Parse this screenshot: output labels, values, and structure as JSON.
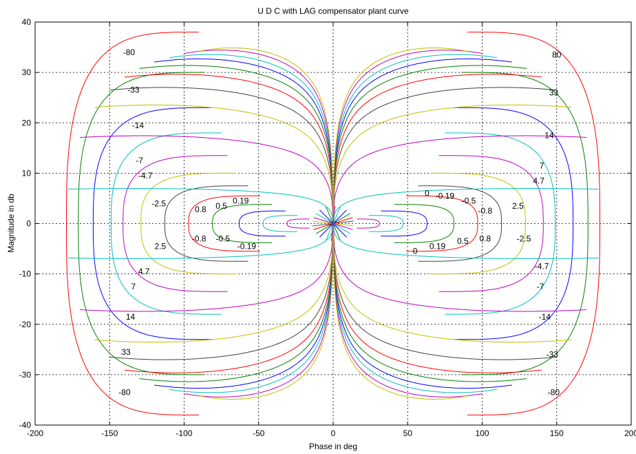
{
  "chart_data": {
    "type": "line",
    "title": "U D C with LAG compensator plant curve",
    "xlabel": "Phase in deg",
    "ylabel": "Magnitude in db",
    "xlim": [
      -200,
      200
    ],
    "ylim": [
      -40,
      40
    ],
    "xticks": [
      "-200",
      "-150",
      "-100",
      "-50",
      "0",
      "50",
      "100",
      "150",
      "200"
    ],
    "yticks": [
      "40",
      "30",
      "20",
      "10",
      "0",
      "-10",
      "-20",
      "-30",
      "-40"
    ],
    "grid": true,
    "colors": [
      "#ff0000",
      "#008000",
      "#0000ff",
      "#00bfbf",
      "#bf00bf",
      "#bfbf00",
      "#404040"
    ],
    "contours": [
      {
        "label": "80",
        "value": 80,
        "color": "#ff0000"
      },
      {
        "label": "33",
        "value": 33,
        "color": "#404040"
      },
      {
        "label": "14",
        "value": 14,
        "color": "#0000ff"
      },
      {
        "label": "7",
        "value": 7,
        "color": "#008000"
      },
      {
        "label": "4.7",
        "value": 4.7,
        "color": "#ff0000"
      },
      {
        "label": "2.5",
        "value": 2.5,
        "color": "#bfbf00"
      },
      {
        "label": "0.8",
        "value": 0.8,
        "color": "#00bfbf"
      },
      {
        "label": "0.5",
        "value": 0.5,
        "color": "#0000ff"
      },
      {
        "label": "0.19",
        "value": 0.19,
        "color": "#bf00bf"
      },
      {
        "label": "0",
        "value": 0,
        "color": "#008000"
      }
    ],
    "curve_labels": [
      {
        "text": "-80",
        "x": -137,
        "y": 34
      },
      {
        "text": "-33",
        "x": -134,
        "y": 26.5
      },
      {
        "text": "-14",
        "x": -131,
        "y": 19.5
      },
      {
        "text": "-7",
        "x": -130,
        "y": 12.5
      },
      {
        "text": "-4.7",
        "x": -126,
        "y": 9.5
      },
      {
        "text": "-2.5",
        "x": -117,
        "y": 4
      },
      {
        "text": "0.8",
        "x": -89,
        "y": 2.8
      },
      {
        "text": "0.5",
        "x": -75,
        "y": 3.5
      },
      {
        "text": "0.19",
        "x": -62,
        "y": 4.5
      },
      {
        "text": "2.5",
        "x": -116,
        "y": -4.5
      },
      {
        "text": "-0.8",
        "x": -90,
        "y": -3
      },
      {
        "text": "-0.5",
        "x": -74,
        "y": -3
      },
      {
        "text": "-0.19",
        "x": -58,
        "y": -4.5
      },
      {
        "text": "4.7",
        "x": -127,
        "y": -9.5
      },
      {
        "text": "7",
        "x": -134,
        "y": -12.5
      },
      {
        "text": "14",
        "x": -136,
        "y": -18.5
      },
      {
        "text": "33",
        "x": -139,
        "y": -25.5
      },
      {
        "text": "-80",
        "x": -140,
        "y": -33.5
      },
      {
        "text": "80",
        "x": 150,
        "y": 33.5
      },
      {
        "text": "33",
        "x": 148,
        "y": 26
      },
      {
        "text": "14",
        "x": 145,
        "y": 17.5
      },
      {
        "text": "7",
        "x": 140,
        "y": 11.5
      },
      {
        "text": "4.7",
        "x": 138,
        "y": 8.5
      },
      {
        "text": "2.5",
        "x": 124,
        "y": 3.5
      },
      {
        "text": "0",
        "x": 63,
        "y": 6
      },
      {
        "text": "-0.19",
        "x": 75,
        "y": 5.5
      },
      {
        "text": "-0.5",
        "x": 91,
        "y": 4.5
      },
      {
        "text": "-0.8",
        "x": 102,
        "y": 2.5
      },
      {
        "text": "0",
        "x": 55,
        "y": -5.5
      },
      {
        "text": "0.19",
        "x": 70,
        "y": -4.5
      },
      {
        "text": "0.5",
        "x": 87,
        "y": -3.5
      },
      {
        "text": "0.8",
        "x": 102,
        "y": -3
      },
      {
        "text": "-2.5",
        "x": 128,
        "y": -3
      },
      {
        "text": "-4.7",
        "x": 140,
        "y": -8.5
      },
      {
        "text": "-7",
        "x": 139,
        "y": -12.5
      },
      {
        "text": "-14",
        "x": 142,
        "y": -18.5
      },
      {
        "text": "-33",
        "x": 147,
        "y": -26
      },
      {
        "text": "-80",
        "x": 148,
        "y": -33.5
      }
    ]
  }
}
